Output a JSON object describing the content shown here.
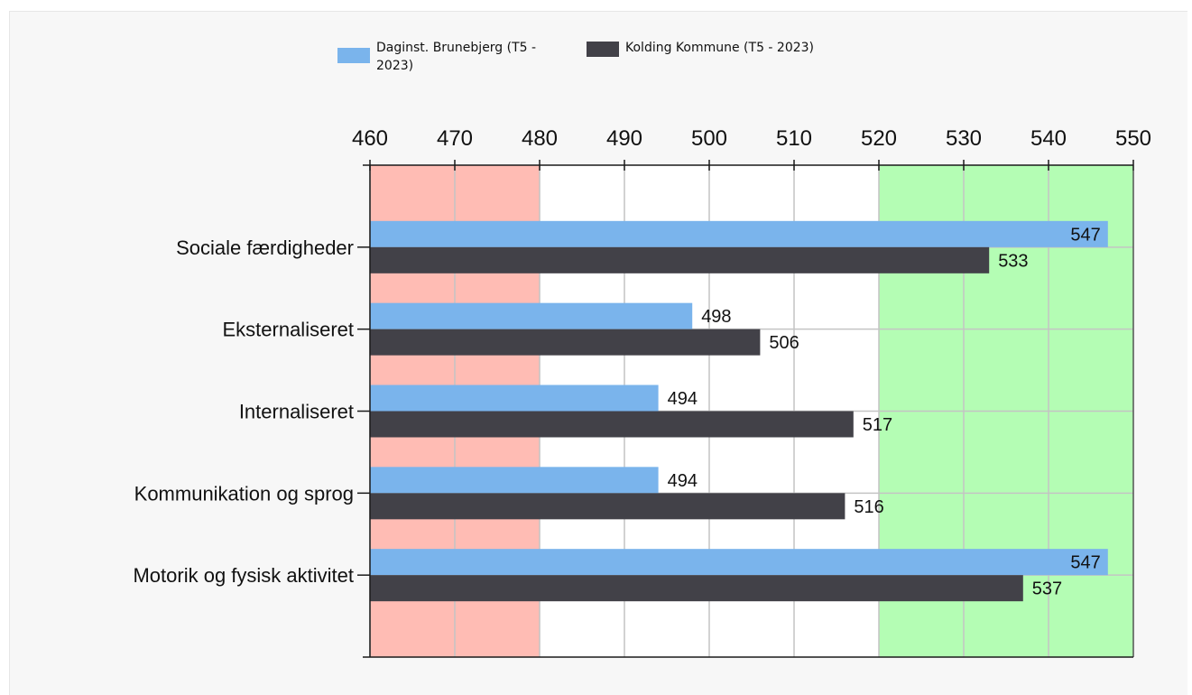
{
  "chart_data": {
    "type": "bar",
    "orientation": "horizontal",
    "categories": [
      "Sociale færdigheder",
      "Eksternaliseret",
      "Internaliseret",
      "Kommunikation og sprog",
      "Motorik og fysisk aktivitet"
    ],
    "series": [
      {
        "name": "Daginst. Brunebjerg (T5 - 2023)",
        "values": [
          547,
          498,
          494,
          494,
          547
        ],
        "color": "#7ab4ec"
      },
      {
        "name": "Kolding Kommune (T5 - 2023)",
        "values": [
          533,
          506,
          517,
          516,
          537
        ],
        "color": "#424148"
      }
    ],
    "data_labels": [
      [
        "547",
        "498",
        "494",
        "494",
        "547"
      ],
      [
        "533",
        "506",
        "517",
        "516",
        "537"
      ]
    ],
    "xlim": [
      460,
      550
    ],
    "xticks": [
      460,
      470,
      480,
      490,
      500,
      510,
      520,
      530,
      540,
      550
    ],
    "xtick_labels": [
      "460",
      "470",
      "480",
      "490",
      "500",
      "510",
      "520",
      "530",
      "540",
      "550"
    ],
    "background_bands": [
      {
        "from": 460,
        "to": 480,
        "color": "#ffbcb4"
      },
      {
        "from": 480,
        "to": 520,
        "color": "#ffffff"
      },
      {
        "from": 520,
        "to": 550,
        "color": "#b4fdb4"
      }
    ],
    "grid": true,
    "axis_position": "top",
    "legend_position": "top"
  },
  "legend": {
    "items": [
      {
        "label_line1": "Daginst. Brunebjerg (T5 -",
        "label_line2": "2023)",
        "color": "#7ab4ec"
      },
      {
        "label_line1": "Kolding Kommune (T5 - 2023)",
        "label_line2": "",
        "color": "#424148"
      }
    ]
  }
}
